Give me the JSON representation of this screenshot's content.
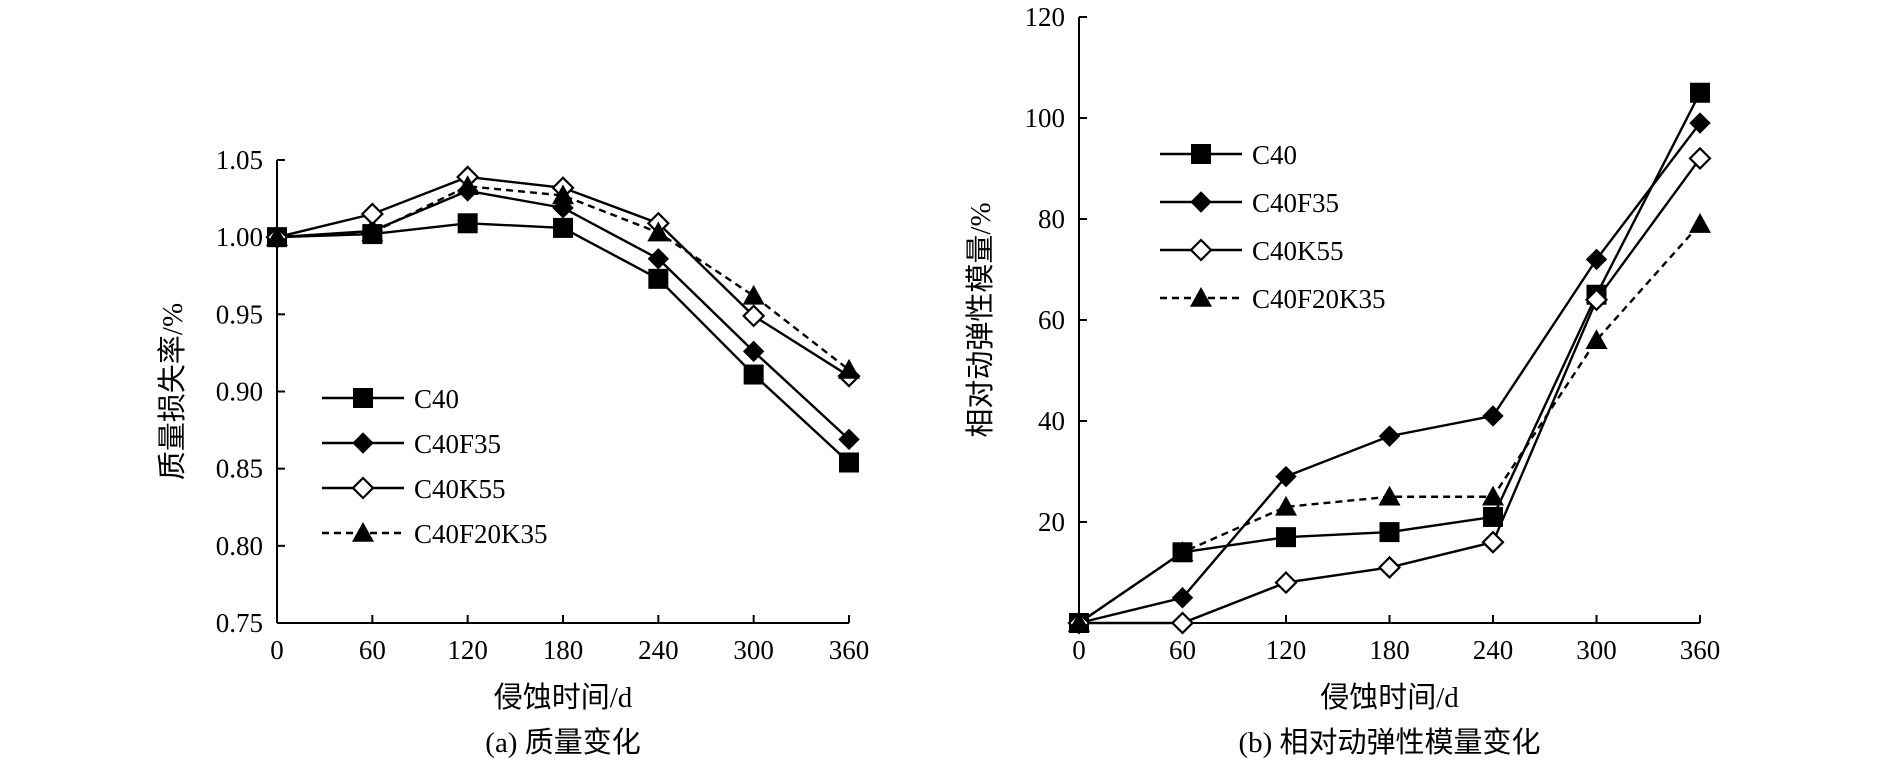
{
  "chart_data": [
    {
      "type": "line",
      "caption": "(a) 质量变化",
      "xlabel": "侵蚀时间/d",
      "ylabel": "质量损失率/%",
      "x": [
        0,
        60,
        120,
        180,
        240,
        300,
        360
      ],
      "xlim": [
        0,
        360
      ],
      "ylim": [
        0.75,
        1.05
      ],
      "xticks": [
        "0",
        "60",
        "120",
        "180",
        "240",
        "300",
        "360"
      ],
      "yticks": [
        "0.75",
        "0.80",
        "0.85",
        "0.90",
        "0.95",
        "1.00",
        "1.05"
      ],
      "legend_position": "bottom-left",
      "series": [
        {
          "name": "C40",
          "marker": "square-filled",
          "dashed": false,
          "values": [
            1.0,
            1.002,
            1.009,
            1.006,
            0.973,
            0.911,
            0.854
          ]
        },
        {
          "name": "C40F35",
          "marker": "diamond-filled",
          "dashed": false,
          "values": [
            1.0,
            1.004,
            1.03,
            1.019,
            0.986,
            0.926,
            0.869
          ]
        },
        {
          "name": "C40K55",
          "marker": "diamond-open",
          "dashed": false,
          "values": [
            1.0,
            1.015,
            1.039,
            1.032,
            1.009,
            0.949,
            0.91
          ]
        },
        {
          "name": "C40F20K35",
          "marker": "triangle-filled",
          "dashed": true,
          "values": [
            1.0,
            1.003,
            1.033,
            1.027,
            1.003,
            0.962,
            0.914
          ]
        }
      ]
    },
    {
      "type": "line",
      "caption": "(b) 相对动弹性模量变化",
      "xlabel": "侵蚀时间/d",
      "ylabel": "相对动弹性模量/%",
      "x": [
        0,
        60,
        120,
        180,
        240,
        300,
        360
      ],
      "xlim": [
        0,
        360
      ],
      "ylim": [
        0,
        120
      ],
      "xticks": [
        "0",
        "60",
        "120",
        "180",
        "240",
        "300",
        "360"
      ],
      "yticks": [
        "20",
        "40",
        "60",
        "80",
        "100",
        "120"
      ],
      "legend_position": "top-left",
      "series": [
        {
          "name": "C40",
          "marker": "square-filled",
          "dashed": false,
          "values": [
            0,
            14,
            17,
            18,
            21,
            65,
            105
          ]
        },
        {
          "name": "C40F35",
          "marker": "diamond-filled",
          "dashed": false,
          "values": [
            0,
            5,
            29,
            37,
            41,
            72,
            99
          ]
        },
        {
          "name": "C40K55",
          "marker": "diamond-open",
          "dashed": false,
          "values": [
            0,
            0,
            8,
            11,
            16,
            64,
            92
          ]
        },
        {
          "name": "C40F20K35",
          "marker": "triangle-filled",
          "dashed": true,
          "values": [
            0,
            14,
            23,
            25,
            25,
            56,
            79
          ]
        }
      ]
    }
  ]
}
